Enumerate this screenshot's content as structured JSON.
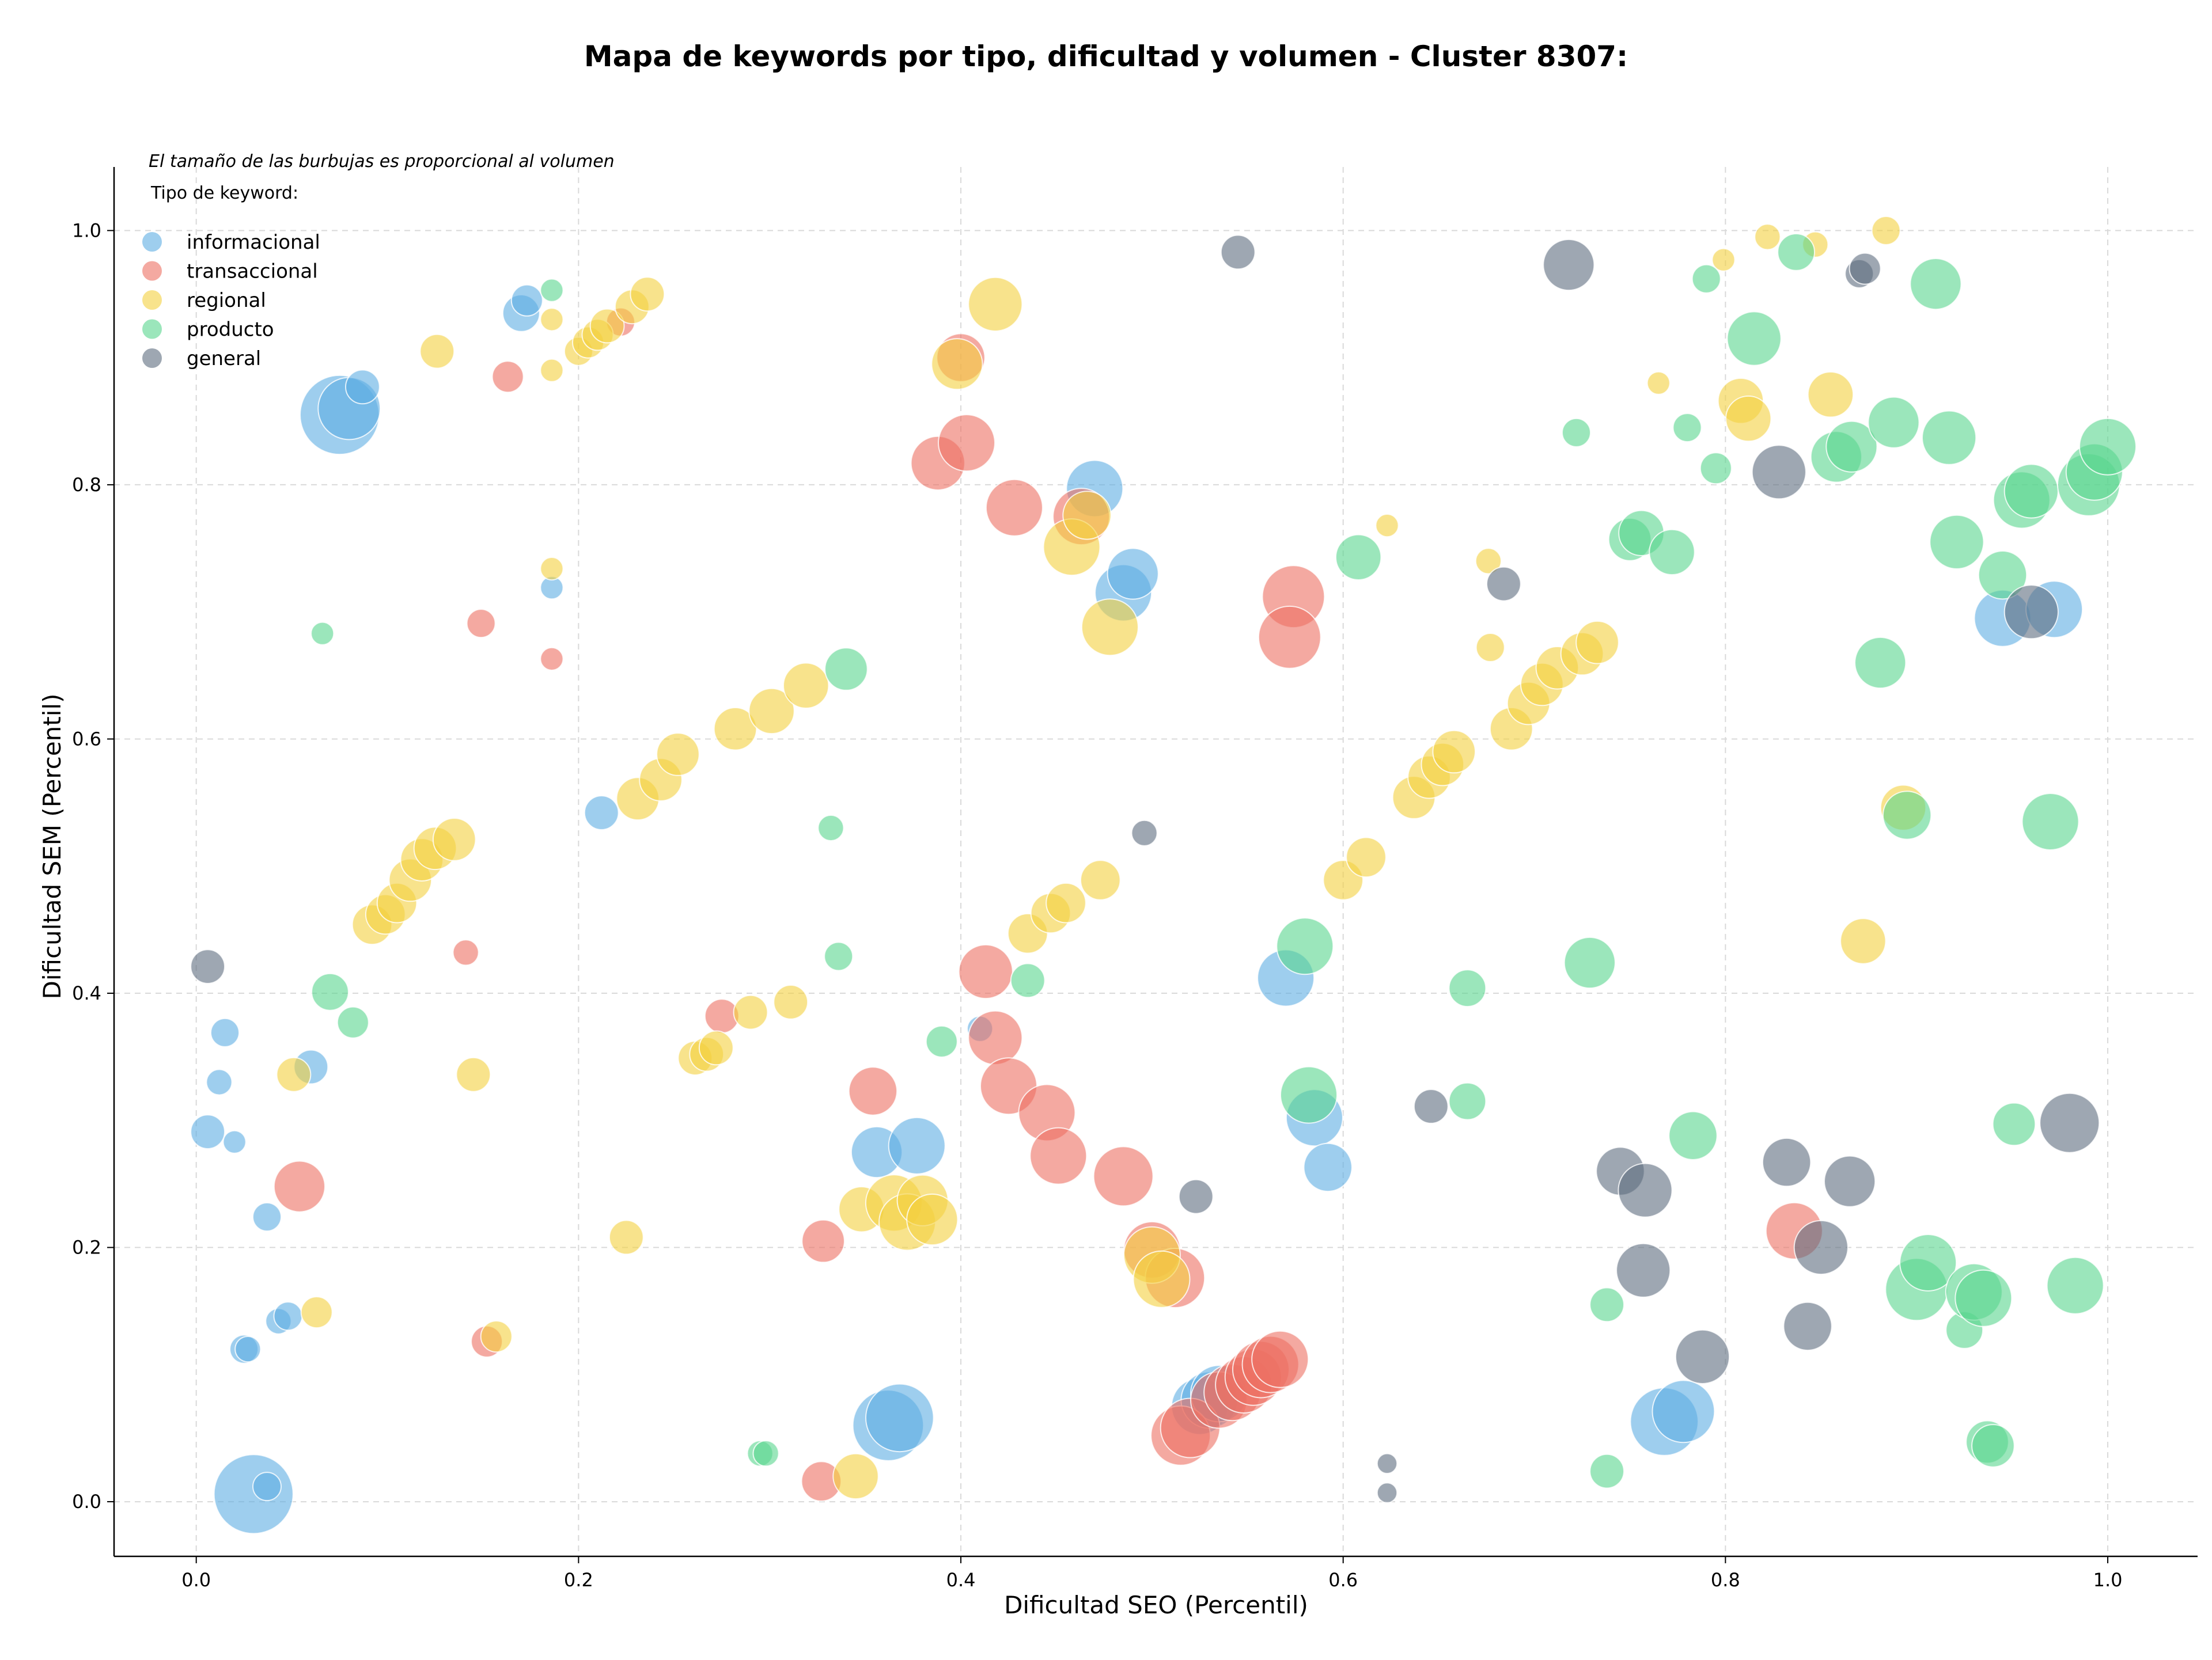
{
  "chart_data": {
    "type": "scatter",
    "title": "Mapa de keywords por tipo, dificultad y volumen - Cluster 8307:",
    "xlabel": "Dificultad SEO (Percentil)",
    "ylabel": "Dificultad SEM (Percentil)",
    "xlim": [
      -0.043,
      1.047
    ],
    "ylim": [
      -0.043,
      1.05
    ],
    "xticks": [
      "0.0",
      "0.2",
      "0.4",
      "0.6",
      "0.8",
      "1.0"
    ],
    "yticks": [
      "0.0",
      "0.2",
      "0.4",
      "0.6",
      "0.8",
      "1.0"
    ],
    "grid": true,
    "legend_note": "El tamaño de las burbujas es proporcional al volumen",
    "legend_title": "Tipo de keyword:",
    "legend_position": "top-left",
    "series": [
      {
        "name": "informacional",
        "color": "#5dade2",
        "points": [
          [
            0.075,
            0.855,
            28
          ],
          [
            0.08,
            0.86,
            22
          ],
          [
            0.087,
            0.877,
            12
          ],
          [
            0.17,
            0.935,
            13
          ],
          [
            0.173,
            0.945,
            11
          ],
          [
            0.186,
            0.719,
            8
          ],
          [
            0.212,
            0.542,
            12
          ],
          [
            0.006,
            0.291,
            12
          ],
          [
            0.015,
            0.369,
            10
          ],
          [
            0.012,
            0.33,
            9
          ],
          [
            0.02,
            0.283,
            8
          ],
          [
            0.06,
            0.342,
            12
          ],
          [
            0.037,
            0.224,
            10
          ],
          [
            0.025,
            0.12,
            10
          ],
          [
            0.027,
            0.12,
            9
          ],
          [
            0.043,
            0.142,
            9
          ],
          [
            0.048,
            0.146,
            10
          ],
          [
            0.03,
            0.006,
            28
          ],
          [
            0.037,
            0.012,
            10
          ],
          [
            0.356,
            0.275,
            18
          ],
          [
            0.377,
            0.28,
            20
          ],
          [
            0.362,
            0.06,
            25
          ],
          [
            0.368,
            0.066,
            24
          ],
          [
            0.41,
            0.372,
            9
          ],
          [
            0.47,
            0.797,
            20
          ],
          [
            0.485,
            0.715,
            20
          ],
          [
            0.49,
            0.73,
            18
          ],
          [
            0.525,
            0.075,
            20
          ],
          [
            0.53,
            0.08,
            20
          ],
          [
            0.535,
            0.085,
            20
          ],
          [
            0.57,
            0.412,
            20
          ],
          [
            0.585,
            0.302,
            20
          ],
          [
            0.592,
            0.263,
            17
          ],
          [
            0.768,
            0.063,
            24
          ],
          [
            0.778,
            0.071,
            22
          ],
          [
            0.945,
            0.695,
            20
          ],
          [
            0.972,
            0.702,
            20
          ]
        ]
      },
      {
        "name": "transaccional",
        "color": "#ec7063",
        "points": [
          [
            0.163,
            0.885,
            11
          ],
          [
            0.222,
            0.928,
            10
          ],
          [
            0.149,
            0.691,
            10
          ],
          [
            0.186,
            0.663,
            8
          ],
          [
            0.141,
            0.432,
            9
          ],
          [
            0.054,
            0.248,
            18
          ],
          [
            0.152,
            0.126,
            11
          ],
          [
            0.4,
            0.9,
            17
          ],
          [
            0.388,
            0.817,
            19
          ],
          [
            0.403,
            0.833,
            20
          ],
          [
            0.428,
            0.782,
            20
          ],
          [
            0.463,
            0.775,
            20
          ],
          [
            0.574,
            0.712,
            22
          ],
          [
            0.572,
            0.68,
            22
          ],
          [
            0.275,
            0.382,
            12
          ],
          [
            0.413,
            0.417,
            19
          ],
          [
            0.418,
            0.365,
            19
          ],
          [
            0.354,
            0.323,
            17
          ],
          [
            0.425,
            0.327,
            20
          ],
          [
            0.445,
            0.306,
            20
          ],
          [
            0.451,
            0.272,
            20
          ],
          [
            0.485,
            0.256,
            21
          ],
          [
            0.328,
            0.205,
            15
          ],
          [
            0.327,
            0.016,
            14
          ],
          [
            0.5,
            0.198,
            20
          ],
          [
            0.512,
            0.176,
            21
          ],
          [
            0.515,
            0.052,
            21
          ],
          [
            0.52,
            0.058,
            21
          ],
          [
            0.535,
            0.08,
            20
          ],
          [
            0.542,
            0.086,
            20
          ],
          [
            0.548,
            0.092,
            20
          ],
          [
            0.553,
            0.098,
            20
          ],
          [
            0.557,
            0.104,
            20
          ],
          [
            0.562,
            0.108,
            20
          ],
          [
            0.567,
            0.112,
            20
          ],
          [
            0.836,
            0.213,
            20
          ]
        ]
      },
      {
        "name": "regional",
        "color": "#f4d03f",
        "points": [
          [
            0.126,
            0.905,
            12
          ],
          [
            0.186,
            0.93,
            8
          ],
          [
            0.186,
            0.89,
            8
          ],
          [
            0.2,
            0.905,
            10
          ],
          [
            0.205,
            0.912,
            11
          ],
          [
            0.21,
            0.918,
            11
          ],
          [
            0.215,
            0.925,
            12
          ],
          [
            0.228,
            0.94,
            12
          ],
          [
            0.236,
            0.95,
            12
          ],
          [
            0.186,
            0.734,
            8
          ],
          [
            0.092,
            0.454,
            14
          ],
          [
            0.099,
            0.462,
            14
          ],
          [
            0.105,
            0.471,
            14
          ],
          [
            0.112,
            0.489,
            15
          ],
          [
            0.118,
            0.505,
            15
          ],
          [
            0.125,
            0.514,
            15
          ],
          [
            0.135,
            0.521,
            15
          ],
          [
            0.231,
            0.553,
            15
          ],
          [
            0.243,
            0.568,
            15
          ],
          [
            0.252,
            0.588,
            15
          ],
          [
            0.282,
            0.608,
            15
          ],
          [
            0.301,
            0.622,
            16
          ],
          [
            0.319,
            0.642,
            16
          ],
          [
            0.051,
            0.336,
            12
          ],
          [
            0.145,
            0.336,
            12
          ],
          [
            0.063,
            0.149,
            11
          ],
          [
            0.157,
            0.13,
            11
          ],
          [
            0.225,
            0.208,
            12
          ],
          [
            0.261,
            0.349,
            12
          ],
          [
            0.267,
            0.352,
            12
          ],
          [
            0.272,
            0.357,
            12
          ],
          [
            0.29,
            0.385,
            12
          ],
          [
            0.311,
            0.393,
            12
          ],
          [
            0.345,
            0.02,
            16
          ],
          [
            0.348,
            0.23,
            16
          ],
          [
            0.365,
            0.235,
            20
          ],
          [
            0.372,
            0.22,
            20
          ],
          [
            0.38,
            0.237,
            18
          ],
          [
            0.385,
            0.222,
            18
          ],
          [
            0.398,
            0.895,
            18
          ],
          [
            0.418,
            0.942,
            19
          ],
          [
            0.435,
            0.447,
            14
          ],
          [
            0.447,
            0.463,
            14
          ],
          [
            0.455,
            0.471,
            14
          ],
          [
            0.473,
            0.489,
            14
          ],
          [
            0.458,
            0.751,
            20
          ],
          [
            0.466,
            0.776,
            17
          ],
          [
            0.478,
            0.688,
            20
          ],
          [
            0.5,
            0.194,
            20
          ],
          [
            0.505,
            0.175,
            20
          ],
          [
            0.6,
            0.489,
            14
          ],
          [
            0.612,
            0.507,
            14
          ],
          [
            0.623,
            0.768,
            8
          ],
          [
            0.637,
            0.554,
            15
          ],
          [
            0.645,
            0.57,
            15
          ],
          [
            0.652,
            0.58,
            15
          ],
          [
            0.658,
            0.59,
            15
          ],
          [
            0.676,
            0.74,
            9
          ],
          [
            0.677,
            0.672,
            10
          ],
          [
            0.688,
            0.608,
            15
          ],
          [
            0.697,
            0.628,
            15
          ],
          [
            0.704,
            0.643,
            15
          ],
          [
            0.712,
            0.656,
            15
          ],
          [
            0.725,
            0.667,
            15
          ],
          [
            0.733,
            0.676,
            15
          ],
          [
            0.765,
            0.88,
            8
          ],
          [
            0.799,
            0.977,
            8
          ],
          [
            0.822,
            0.995,
            9
          ],
          [
            0.808,
            0.866,
            16
          ],
          [
            0.812,
            0.852,
            16
          ],
          [
            0.847,
            0.989,
            9
          ],
          [
            0.855,
            0.871,
            16
          ],
          [
            0.872,
            0.441,
            16
          ],
          [
            0.884,
            1.0,
            10
          ],
          [
            0.893,
            0.546,
            16
          ]
        ]
      },
      {
        "name": "producto",
        "color": "#58d68d",
        "points": [
          [
            0.186,
            0.953,
            8
          ],
          [
            0.066,
            0.683,
            8
          ],
          [
            0.07,
            0.401,
            13
          ],
          [
            0.082,
            0.377,
            11
          ],
          [
            0.332,
            0.53,
            9
          ],
          [
            0.34,
            0.655,
            15
          ],
          [
            0.336,
            0.429,
            10
          ],
          [
            0.39,
            0.362,
            11
          ],
          [
            0.435,
            0.41,
            12
          ],
          [
            0.295,
            0.038,
            9
          ],
          [
            0.298,
            0.038,
            9
          ],
          [
            0.608,
            0.743,
            16
          ],
          [
            0.58,
            0.437,
            20
          ],
          [
            0.582,
            0.32,
            20
          ],
          [
            0.665,
            0.404,
            13
          ],
          [
            0.665,
            0.315,
            13
          ],
          [
            0.722,
            0.841,
            10
          ],
          [
            0.729,
            0.424,
            18
          ],
          [
            0.738,
            0.155,
            12
          ],
          [
            0.738,
            0.024,
            12
          ],
          [
            0.75,
            0.757,
            15
          ],
          [
            0.756,
            0.762,
            16
          ],
          [
            0.772,
            0.747,
            16
          ],
          [
            0.783,
            0.288,
            17
          ],
          [
            0.79,
            0.962,
            10
          ],
          [
            0.78,
            0.845,
            10
          ],
          [
            0.795,
            0.813,
            11
          ],
          [
            0.815,
            0.915,
            19
          ],
          [
            0.837,
            0.983,
            13
          ],
          [
            0.858,
            0.822,
            18
          ],
          [
            0.866,
            0.83,
            18
          ],
          [
            0.881,
            0.66,
            18
          ],
          [
            0.888,
            0.849,
            18
          ],
          [
            0.895,
            0.54,
            17
          ],
          [
            0.9,
            0.167,
            22
          ],
          [
            0.906,
            0.188,
            20
          ],
          [
            0.91,
            0.958,
            18
          ],
          [
            0.917,
            0.837,
            19
          ],
          [
            0.921,
            0.755,
            19
          ],
          [
            0.925,
            0.135,
            13
          ],
          [
            0.93,
            0.165,
            20
          ],
          [
            0.935,
            0.16,
            20
          ],
          [
            0.937,
            0.047,
            15
          ],
          [
            0.94,
            0.044,
            15
          ],
          [
            0.945,
            0.729,
            17
          ],
          [
            0.951,
            0.297,
            15
          ],
          [
            0.955,
            0.788,
            20
          ],
          [
            0.96,
            0.795,
            19
          ],
          [
            0.97,
            0.535,
            20
          ],
          [
            0.983,
            0.17,
            20
          ],
          [
            0.99,
            0.8,
            22
          ],
          [
            0.993,
            0.81,
            20
          ],
          [
            1.0,
            0.83,
            20
          ]
        ]
      },
      {
        "name": "general",
        "color": "#5d6d7e",
        "points": [
          [
            0.006,
            0.421,
            12
          ],
          [
            0.496,
            0.526,
            9
          ],
          [
            0.523,
            0.24,
            12
          ],
          [
            0.545,
            0.983,
            12
          ],
          [
            0.623,
            0.03,
            7
          ],
          [
            0.623,
            0.007,
            7
          ],
          [
            0.646,
            0.311,
            12
          ],
          [
            0.684,
            0.722,
            12
          ],
          [
            0.718,
            0.973,
            18
          ],
          [
            0.745,
            0.26,
            17
          ],
          [
            0.758,
            0.245,
            19
          ],
          [
            0.757,
            0.182,
            19
          ],
          [
            0.788,
            0.114,
            19
          ],
          [
            0.828,
            0.81,
            19
          ],
          [
            0.832,
            0.267,
            17
          ],
          [
            0.843,
            0.138,
            17
          ],
          [
            0.85,
            0.2,
            19
          ],
          [
            0.865,
            0.252,
            18
          ],
          [
            0.87,
            0.966,
            10
          ],
          [
            0.873,
            0.97,
            11
          ],
          [
            0.96,
            0.7,
            19
          ],
          [
            0.98,
            0.298,
            21
          ]
        ]
      }
    ]
  }
}
